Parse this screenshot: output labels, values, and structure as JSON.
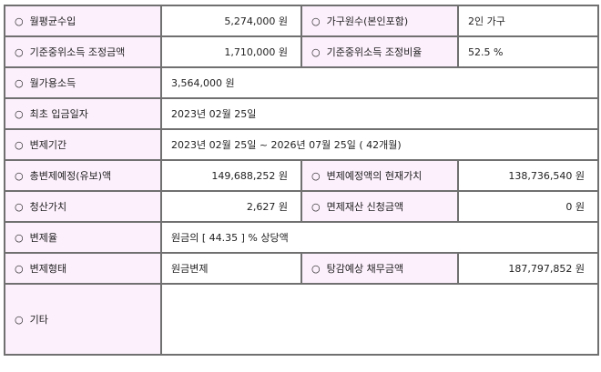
{
  "bullet": "○",
  "rows": [
    {
      "label1": "월평균수입",
      "value1": "5,274,000 원",
      "label2": "가구원수(본인포함)",
      "value2": "2인 가구"
    },
    {
      "label1": "기준중위소득 조정금액",
      "value1": "1,710,000 원",
      "label2": "기준중위소득 조정비율",
      "value2": "52.5 %"
    },
    {
      "label1": "월가용소득",
      "value1": "3,564,000 원"
    },
    {
      "label1": "최초 입금일자",
      "value1": "2023년 02월 25일"
    },
    {
      "label1": "변제기간",
      "value1": "2023년 02월 25일 ~ 2026년 07월 25일 ( 42개월)"
    },
    {
      "label1": "총변제예정(유보)액",
      "value1": "149,688,252 원",
      "label2": "변제예정액의 현재가치",
      "value2": "138,736,540 원"
    },
    {
      "label1": "청산가치",
      "value1": "2,627 원",
      "label2": "면제재산 신청금액",
      "value2": "0 원"
    },
    {
      "label1": "변제율",
      "value1": "원금의 [ 44.35 ] % 상당액"
    },
    {
      "label1": "변제형태",
      "value1": "원금변제",
      "label2": "탕감예상 채무금액",
      "value2": "187,797,852 원"
    },
    {
      "label1": "기타",
      "value1": ""
    }
  ]
}
